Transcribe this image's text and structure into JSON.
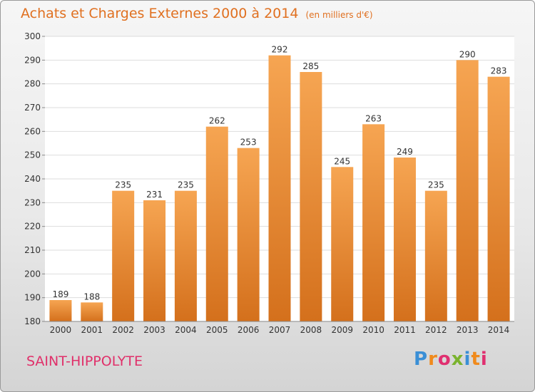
{
  "title": "Achats et Charges Externes 2000 à 2014",
  "subtitle": "(en milliers d'€)",
  "commune": "SAINT-HIPPOLYTE",
  "logo": {
    "text": "Proxiti",
    "colors": [
      "#3a8fd6",
      "#f08a1c",
      "#e03070",
      "#7ab32e",
      "#3a8fd6",
      "#f08a1c",
      "#e03070"
    ]
  },
  "colors": {
    "title": "#e07020",
    "commune": "#e0306a",
    "bar_top": "#f6a552",
    "bar_bottom": "#d4701c",
    "grid": "#dddddd"
  },
  "chart_data": {
    "type": "bar",
    "categories": [
      "2000",
      "2001",
      "2002",
      "2003",
      "2004",
      "2005",
      "2006",
      "2007",
      "2008",
      "2009",
      "2010",
      "2011",
      "2012",
      "2013",
      "2014"
    ],
    "values": [
      189,
      188,
      235,
      231,
      235,
      262,
      253,
      292,
      285,
      245,
      263,
      249,
      235,
      290,
      283
    ],
    "ylim": [
      180,
      300
    ],
    "yticks": [
      180,
      190,
      200,
      210,
      220,
      230,
      240,
      250,
      260,
      270,
      280,
      290,
      300
    ],
    "grid": true
  }
}
